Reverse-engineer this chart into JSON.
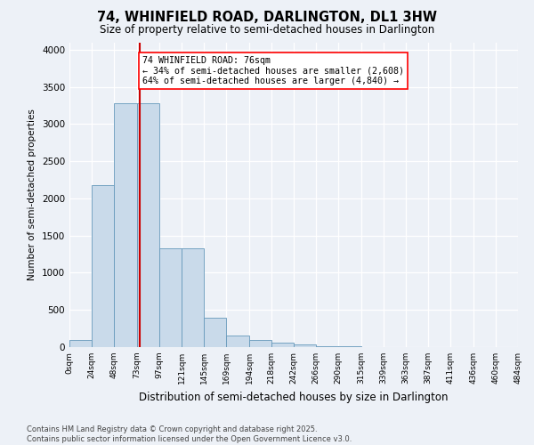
{
  "title1": "74, WHINFIELD ROAD, DARLINGTON, DL1 3HW",
  "title2": "Size of property relative to semi-detached houses in Darlington",
  "xlabel": "Distribution of semi-detached houses by size in Darlington",
  "ylabel": "Number of semi-detached properties",
  "bin_labels": [
    "0sqm",
    "24sqm",
    "48sqm",
    "73sqm",
    "97sqm",
    "121sqm",
    "145sqm",
    "169sqm",
    "194sqm",
    "218sqm",
    "242sqm",
    "266sqm",
    "290sqm",
    "315sqm",
    "339sqm",
    "363sqm",
    "387sqm",
    "411sqm",
    "436sqm",
    "460sqm",
    "484sqm"
  ],
  "bar_values": [
    100,
    2175,
    3280,
    3280,
    1330,
    1330,
    400,
    155,
    95,
    55,
    30,
    10,
    10,
    5,
    2,
    0,
    0,
    0,
    0,
    0
  ],
  "bar_color": "#c9daea",
  "bar_edge_color": "#6699bb",
  "property_sqm": 76,
  "annotation_text": "74 WHINFIELD ROAD: 76sqm\n← 34% of semi-detached houses are smaller (2,608)\n64% of semi-detached houses are larger (4,840) →",
  "vline_color": "#cc0000",
  "ylim": [
    0,
    4100
  ],
  "yticks": [
    0,
    500,
    1000,
    1500,
    2000,
    2500,
    3000,
    3500,
    4000
  ],
  "footer": "Contains HM Land Registry data © Crown copyright and database right 2025.\nContains public sector information licensed under the Open Government Licence v3.0.",
  "bg_color": "#edf1f7",
  "plot_bg_color": "#edf1f7"
}
